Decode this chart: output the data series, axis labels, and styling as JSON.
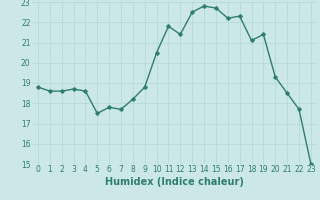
{
  "x": [
    0,
    1,
    2,
    3,
    4,
    5,
    6,
    7,
    8,
    9,
    10,
    11,
    12,
    13,
    14,
    15,
    16,
    17,
    18,
    19,
    20,
    21,
    22,
    23
  ],
  "y": [
    18.8,
    18.6,
    18.6,
    18.7,
    18.6,
    17.5,
    17.8,
    17.7,
    18.2,
    18.8,
    20.5,
    21.8,
    21.4,
    22.5,
    22.8,
    22.7,
    22.2,
    22.3,
    21.1,
    21.4,
    19.3,
    18.5,
    17.7,
    15.0
  ],
  "xlim": [
    -0.5,
    23.5
  ],
  "ylim": [
    15,
    23
  ],
  "yticks": [
    15,
    16,
    17,
    18,
    19,
    20,
    21,
    22,
    23
  ],
  "xticks": [
    0,
    1,
    2,
    3,
    4,
    5,
    6,
    7,
    8,
    9,
    10,
    11,
    12,
    13,
    14,
    15,
    16,
    17,
    18,
    19,
    20,
    21,
    22,
    23
  ],
  "xlabel": "Humidex (Indice chaleur)",
  "line_color": "#2e7d6e",
  "marker": "D",
  "marker_size": 1.8,
  "bg_color": "#cce8e6",
  "grid_color": "#b0d8d5",
  "xlabel_fontsize": 7,
  "tick_fontsize": 5.5,
  "line_width": 1.0
}
